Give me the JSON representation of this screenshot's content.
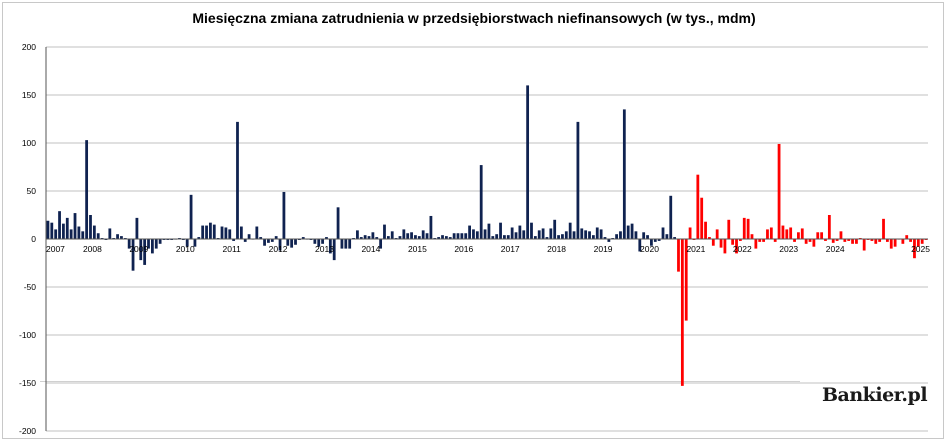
{
  "chart_data": {
    "type": "bar",
    "title": "Miesięczna zmiana zatrudnienia w przedsiębiorstwach niefinansowych (w tys., mdm)",
    "ylim": [
      -200,
      200
    ],
    "yticks": [
      200,
      150,
      100,
      50,
      0,
      -50,
      -100,
      -150,
      -200
    ],
    "xticks": [
      "2007",
      "2008",
      "2009",
      "2010",
      "2011",
      "2012",
      "2013",
      "2014",
      "2015",
      "2016",
      "2017",
      "2018",
      "2019",
      "2020",
      "2021",
      "2022",
      "2023",
      "2024",
      "2025"
    ],
    "grid": true,
    "colors": {
      "bar": "#0f2250",
      "highlight": "#ff0000",
      "grid": "#c0c0c0"
    },
    "years": [
      {
        "year": "2007",
        "values": [
          19,
          17,
          10,
          29,
          16,
          22,
          10,
          27,
          13,
          8,
          103,
          25
        ]
      },
      {
        "year": "2008",
        "values": [
          14,
          6,
          1,
          -1,
          11,
          1,
          5,
          3,
          1,
          -10,
          -33,
          22
        ]
      },
      {
        "year": "2009",
        "values": [
          -22,
          -27,
          -10,
          -15,
          -10,
          -5,
          -1,
          -1,
          -1,
          0,
          1,
          -1
        ]
      },
      {
        "year": "2010",
        "values": [
          -8,
          46,
          -8,
          2,
          14,
          14,
          17,
          15,
          1,
          13,
          12,
          10
        ]
      },
      {
        "year": "2011",
        "values": [
          -2,
          122,
          13,
          -3,
          5,
          0,
          13,
          2,
          -7,
          -4,
          -3,
          3
        ]
      },
      {
        "year": "2012",
        "values": [
          -12,
          49,
          -7,
          -9,
          -6,
          -1,
          2,
          0,
          -1,
          -5,
          -8,
          -5
        ]
      },
      {
        "year": "2013",
        "values": [
          2,
          -15,
          -22,
          33,
          -10,
          -10,
          -10,
          1,
          9,
          2,
          4,
          3
        ]
      },
      {
        "year": "2014",
        "values": [
          7,
          2,
          -10,
          15,
          3,
          8,
          1,
          3,
          10,
          6,
          7,
          4
        ]
      },
      {
        "year": "2015",
        "values": [
          3,
          9,
          6,
          24,
          1,
          2,
          4,
          3,
          2,
          6,
          6,
          6
        ]
      },
      {
        "year": "2016",
        "values": [
          6,
          14,
          10,
          8,
          77,
          10,
          16,
          3,
          5,
          17,
          4,
          4
        ]
      },
      {
        "year": "2017",
        "values": [
          12,
          7,
          14,
          9,
          160,
          17,
          3,
          9,
          11,
          2,
          11,
          20
        ]
      },
      {
        "year": "2018",
        "values": [
          4,
          5,
          8,
          17,
          8,
          122,
          11,
          9,
          8,
          4,
          12,
          10
        ]
      },
      {
        "year": "2019",
        "values": [
          2,
          -3,
          1,
          5,
          8,
          135,
          14,
          16,
          8,
          -13,
          7,
          4
        ]
      },
      {
        "year": "2020",
        "values": [
          -7,
          -3,
          -2,
          12,
          5,
          45,
          2,
          -34,
          -153,
          -85,
          12,
          -1
        ]
      },
      {
        "year": "2021",
        "values": [
          67,
          43,
          18,
          2,
          -7,
          10,
          -9,
          -15,
          20,
          -6,
          -15,
          -2
        ]
      },
      {
        "year": "2022",
        "values": [
          22,
          21,
          5,
          -10,
          -3,
          -3,
          10,
          12,
          -3,
          99,
          14,
          10
        ]
      },
      {
        "year": "2023",
        "values": [
          12,
          -3,
          7,
          11,
          -5,
          -3,
          -8,
          7,
          7,
          -2,
          25,
          -4
        ]
      },
      {
        "year": "2024",
        "values": [
          -2,
          8,
          -3,
          -2,
          -5,
          -5,
          1,
          -12,
          -1,
          -2,
          -5,
          -3
        ]
      },
      {
        "year": "2025",
        "values": [
          21,
          -3,
          -10,
          -8,
          0,
          -5,
          4,
          -3,
          -20,
          -8,
          -5,
          -1
        ]
      }
    ],
    "highlight_start": "2020-08"
  },
  "watermark": {
    "text": "Bankier.pl"
  }
}
